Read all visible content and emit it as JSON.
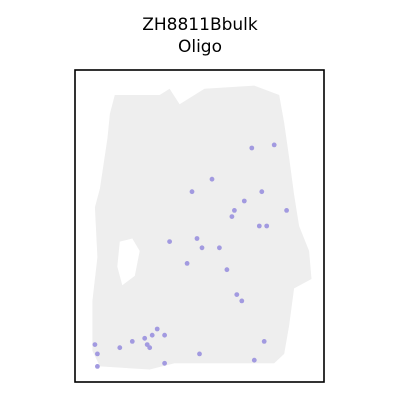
{
  "chart_data": {
    "type": "scatter",
    "title": "ZH8811Bbulk",
    "subtitle": "Oligo",
    "xlabel": "",
    "ylabel": "",
    "grid": false,
    "axes_ticks": false,
    "background_color": "#eeeeee",
    "highlight_color": "#a29ae0",
    "frame_color": "#000000",
    "xlim": [
      0,
      100
    ],
    "ylim": [
      0,
      100
    ],
    "tissue_region": [
      [
        16,
        92
      ],
      [
        34,
        92
      ],
      [
        38,
        94
      ],
      [
        42,
        89
      ],
      [
        52,
        94
      ],
      [
        72,
        95
      ],
      [
        82,
        92
      ],
      [
        84,
        83
      ],
      [
        86,
        72
      ],
      [
        88,
        60
      ],
      [
        90,
        50
      ],
      [
        94,
        42
      ],
      [
        95,
        33
      ],
      [
        88,
        30
      ],
      [
        86,
        18
      ],
      [
        84,
        9
      ],
      [
        80,
        6
      ],
      [
        60,
        6
      ],
      [
        40,
        6
      ],
      [
        30,
        4
      ],
      [
        10,
        5
      ],
      [
        7,
        10
      ],
      [
        7,
        26
      ],
      [
        9,
        40
      ],
      [
        8,
        56
      ],
      [
        10,
        62
      ],
      [
        13,
        78
      ],
      [
        14,
        86
      ]
    ],
    "tissue_holes": [
      [
        [
          18,
          45
        ],
        [
          23,
          46
        ],
        [
          26,
          42
        ],
        [
          24,
          34
        ],
        [
          19,
          31
        ],
        [
          17,
          37
        ]
      ]
    ],
    "series": [
      {
        "points": [
          [
            71,
            75
          ],
          [
            80,
            76
          ],
          [
            55,
            65
          ],
          [
            47,
            61
          ],
          [
            75,
            61
          ],
          [
            68,
            58
          ],
          [
            64,
            55
          ],
          [
            63,
            53
          ],
          [
            85,
            55
          ],
          [
            74,
            50
          ],
          [
            77,
            50
          ],
          [
            49,
            46
          ],
          [
            38,
            45
          ],
          [
            51,
            43
          ],
          [
            58,
            43
          ],
          [
            45,
            38
          ],
          [
            61,
            36
          ],
          [
            65,
            28
          ],
          [
            67,
            26
          ],
          [
            33,
            17
          ],
          [
            31,
            15
          ],
          [
            28,
            14
          ],
          [
            36,
            15
          ],
          [
            23,
            13
          ],
          [
            29,
            12
          ],
          [
            30,
            11
          ],
          [
            8,
            12
          ],
          [
            9,
            9
          ],
          [
            18,
            11
          ],
          [
            50,
            9
          ],
          [
            76,
            13
          ],
          [
            72,
            7
          ],
          [
            36,
            6
          ],
          [
            9,
            5
          ]
        ]
      }
    ]
  }
}
